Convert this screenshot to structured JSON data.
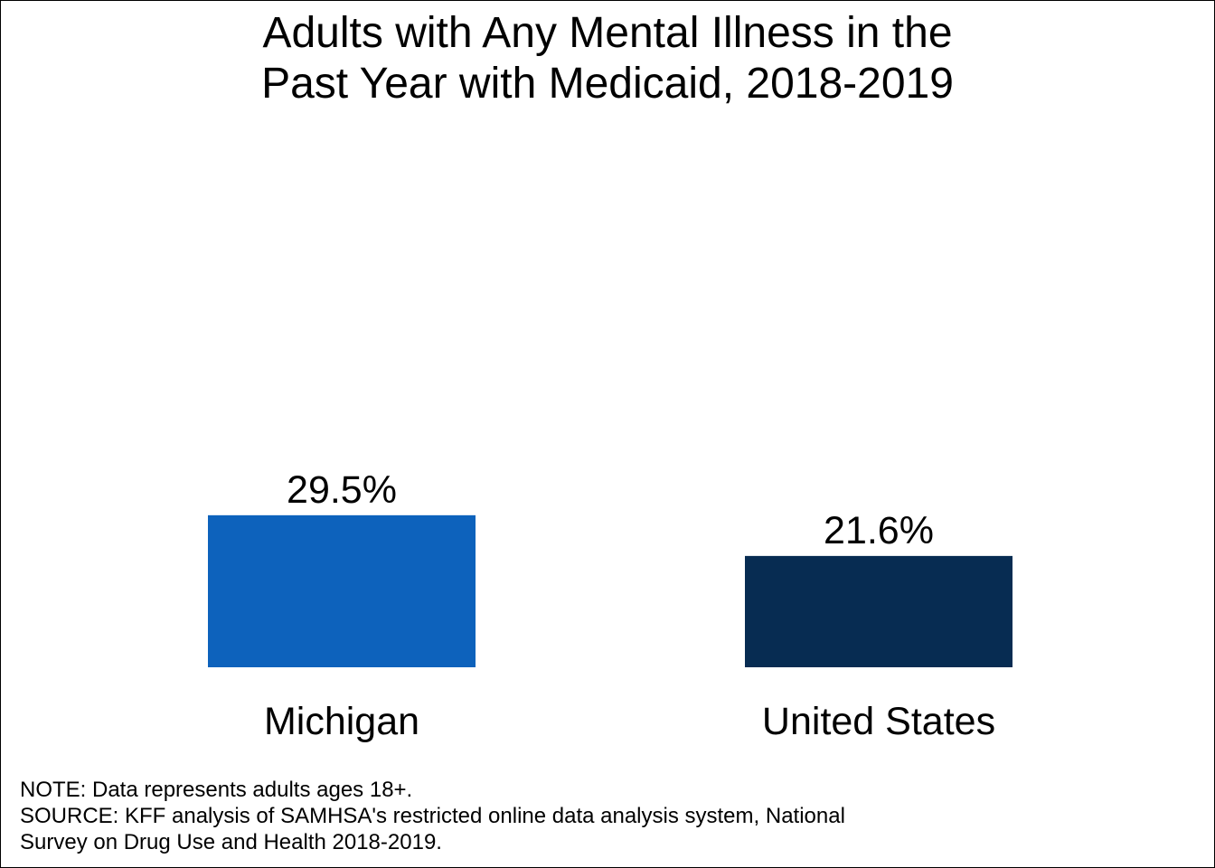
{
  "chart_data": {
    "type": "bar",
    "title": "Adults with Any Mental Illness in the Past Year with Medicaid, 2018-2019",
    "title_lines": [
      "Adults with Any Mental Illness in the",
      "Past Year with Medicaid, 2018-2019"
    ],
    "categories": [
      "Michigan",
      "United States"
    ],
    "values": [
      29.5,
      21.6
    ],
    "value_labels": [
      "29.5%",
      "21.6%"
    ],
    "colors": [
      "#0d62bc",
      "#072c52"
    ],
    "xlabel": "",
    "ylabel": "",
    "ylim": [
      0,
      100
    ],
    "grid": false,
    "legend": "none"
  },
  "footnotes": {
    "note": "NOTE: Data represents adults ages 18+.",
    "source_line_1": "SOURCE: KFF analysis of SAMHSA's restricted online data analysis system, National",
    "source_line_2": "Survey on Drug Use and Health 2018-2019."
  }
}
